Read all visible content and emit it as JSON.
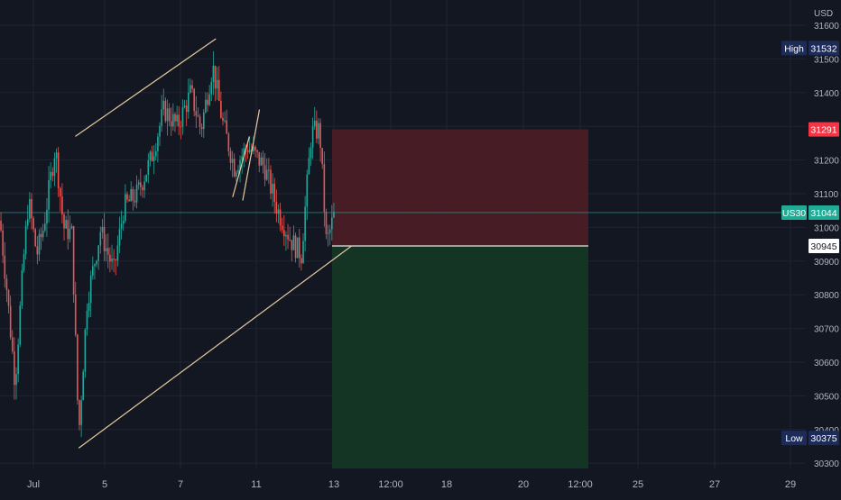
{
  "chart_data": {
    "type": "candlestick",
    "currency": "USD",
    "symbol": "US30",
    "ylim": [
      30250,
      31650
    ],
    "y_ticks": [
      31600,
      31500,
      31400,
      31300,
      31200,
      31100,
      31000,
      30900,
      30800,
      30700,
      30600,
      30500,
      30400,
      30300
    ],
    "x_tick_labels": [
      "Jul",
      "5",
      "7",
      "11",
      "13",
      "12:00",
      "18",
      "20",
      "12:00",
      "25",
      "27",
      "29"
    ],
    "price_labels": {
      "high": {
        "label": "High",
        "value": 31532
      },
      "stop": {
        "value": 31291
      },
      "last": {
        "label": "US30",
        "value": 31044
      },
      "entry": {
        "value": 30945
      },
      "low": {
        "label": "Low",
        "value": 30375
      }
    },
    "position_tool": {
      "entry": 30945,
      "stop": 31291,
      "target": 30250
    },
    "waypoints": [
      {
        "t": 0,
        "p": 31020
      },
      {
        "t": 0.02,
        "p": 30820
      },
      {
        "t": 0.045,
        "p": 30540
      },
      {
        "t": 0.07,
        "p": 30900
      },
      {
        "t": 0.085,
        "p": 31080
      },
      {
        "t": 0.11,
        "p": 30920
      },
      {
        "t": 0.13,
        "p": 31000
      },
      {
        "t": 0.165,
        "p": 31240
      },
      {
        "t": 0.19,
        "p": 31000
      },
      {
        "t": 0.215,
        "p": 30980
      },
      {
        "t": 0.235,
        "p": 30380
      },
      {
        "t": 0.26,
        "p": 30780
      },
      {
        "t": 0.3,
        "p": 30990
      },
      {
        "t": 0.34,
        "p": 30870
      },
      {
        "t": 0.37,
        "p": 31060
      },
      {
        "t": 0.41,
        "p": 31100
      },
      {
        "t": 0.45,
        "p": 31200
      },
      {
        "t": 0.49,
        "p": 31350
      },
      {
        "t": 0.53,
        "p": 31300
      },
      {
        "t": 0.57,
        "p": 31400
      },
      {
        "t": 0.6,
        "p": 31290
      },
      {
        "t": 0.635,
        "p": 31480
      },
      {
        "t": 0.665,
        "p": 31310
      },
      {
        "t": 0.7,
        "p": 31180
      },
      {
        "t": 0.74,
        "p": 31240
      },
      {
        "t": 0.79,
        "p": 31180
      },
      {
        "t": 0.83,
        "p": 31050
      },
      {
        "t": 0.87,
        "p": 30960
      },
      {
        "t": 0.9,
        "p": 30920
      },
      {
        "t": 0.93,
        "p": 31280
      },
      {
        "t": 0.955,
        "p": 31290
      },
      {
        "t": 0.975,
        "p": 30950
      },
      {
        "t": 1,
        "p": 31044
      }
    ],
    "trendlines": [
      {
        "name": "upper-channel-line",
        "from": {
          "t": 0.225,
          "p": 31270
        },
        "to": {
          "t": 0.645,
          "p": 31560
        }
      },
      {
        "name": "lower-channel-line",
        "from": {
          "t": 0.235,
          "p": 30345
        },
        "to": {
          "t": 1.05,
          "p": 30945
        }
      },
      {
        "name": "flag-line-left",
        "from": {
          "t": 0.695,
          "p": 31090
        },
        "to": {
          "t": 0.745,
          "p": 31270
        }
      },
      {
        "name": "flag-line-right",
        "from": {
          "t": 0.725,
          "p": 31080
        },
        "to": {
          "t": 0.775,
          "p": 31350
        }
      }
    ],
    "colors": {
      "background": "#131722",
      "grid": "#1f2433",
      "up": "#26a69a",
      "down": "#ef5350",
      "trendline": "#e6c9a0",
      "stop_zone": "#4a1c26",
      "target_zone": "#143625",
      "label_navy": "#1d2b59",
      "label_red": "#f23645",
      "label_teal": "#22ab94",
      "axis_text": "#b2b5be"
    }
  }
}
